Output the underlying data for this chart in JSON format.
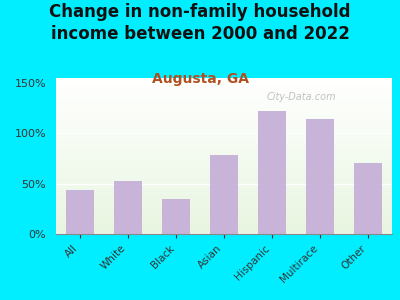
{
  "title": "Change in non-family household\nincome between 2000 and 2022",
  "subtitle": "Augusta, GA",
  "categories": [
    "All",
    "White",
    "Black",
    "Asian",
    "Hispanic",
    "Multirace",
    "Other"
  ],
  "values": [
    44,
    53,
    35,
    78,
    122,
    114,
    71
  ],
  "bar_color": "#c8b4d8",
  "title_fontsize": 12,
  "subtitle_fontsize": 10,
  "title_color": "#111111",
  "subtitle_color": "#b05020",
  "background_color": "#00eeff",
  "plot_bg_color": "#e8f5e0",
  "watermark": "City-Data.com",
  "ylim": [
    0,
    155
  ],
  "yticks": [
    0,
    50,
    100,
    150
  ]
}
